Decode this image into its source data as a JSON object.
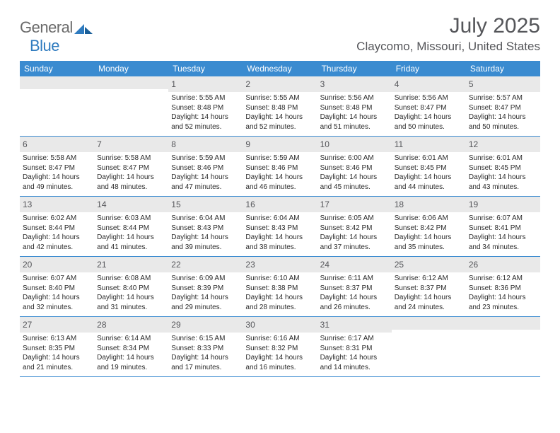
{
  "logo": {
    "part1": "General",
    "part2": "Blue"
  },
  "title": {
    "month": "July 2025",
    "location": "Claycomo, Missouri, United States"
  },
  "calendar": {
    "header_bg": "#3a8bd0",
    "daynum_bg": "#e9e9e9",
    "days": [
      "Sunday",
      "Monday",
      "Tuesday",
      "Wednesday",
      "Thursday",
      "Friday",
      "Saturday"
    ],
    "weeks": [
      [
        null,
        null,
        {
          "n": "1",
          "sunrise": "5:55 AM",
          "sunset": "8:48 PM",
          "daylight": "14 hours and 52 minutes."
        },
        {
          "n": "2",
          "sunrise": "5:55 AM",
          "sunset": "8:48 PM",
          "daylight": "14 hours and 52 minutes."
        },
        {
          "n": "3",
          "sunrise": "5:56 AM",
          "sunset": "8:48 PM",
          "daylight": "14 hours and 51 minutes."
        },
        {
          "n": "4",
          "sunrise": "5:56 AM",
          "sunset": "8:47 PM",
          "daylight": "14 hours and 50 minutes."
        },
        {
          "n": "5",
          "sunrise": "5:57 AM",
          "sunset": "8:47 PM",
          "daylight": "14 hours and 50 minutes."
        }
      ],
      [
        {
          "n": "6",
          "sunrise": "5:58 AM",
          "sunset": "8:47 PM",
          "daylight": "14 hours and 49 minutes."
        },
        {
          "n": "7",
          "sunrise": "5:58 AM",
          "sunset": "8:47 PM",
          "daylight": "14 hours and 48 minutes."
        },
        {
          "n": "8",
          "sunrise": "5:59 AM",
          "sunset": "8:46 PM",
          "daylight": "14 hours and 47 minutes."
        },
        {
          "n": "9",
          "sunrise": "5:59 AM",
          "sunset": "8:46 PM",
          "daylight": "14 hours and 46 minutes."
        },
        {
          "n": "10",
          "sunrise": "6:00 AM",
          "sunset": "8:46 PM",
          "daylight": "14 hours and 45 minutes."
        },
        {
          "n": "11",
          "sunrise": "6:01 AM",
          "sunset": "8:45 PM",
          "daylight": "14 hours and 44 minutes."
        },
        {
          "n": "12",
          "sunrise": "6:01 AM",
          "sunset": "8:45 PM",
          "daylight": "14 hours and 43 minutes."
        }
      ],
      [
        {
          "n": "13",
          "sunrise": "6:02 AM",
          "sunset": "8:44 PM",
          "daylight": "14 hours and 42 minutes."
        },
        {
          "n": "14",
          "sunrise": "6:03 AM",
          "sunset": "8:44 PM",
          "daylight": "14 hours and 41 minutes."
        },
        {
          "n": "15",
          "sunrise": "6:04 AM",
          "sunset": "8:43 PM",
          "daylight": "14 hours and 39 minutes."
        },
        {
          "n": "16",
          "sunrise": "6:04 AM",
          "sunset": "8:43 PM",
          "daylight": "14 hours and 38 minutes."
        },
        {
          "n": "17",
          "sunrise": "6:05 AM",
          "sunset": "8:42 PM",
          "daylight": "14 hours and 37 minutes."
        },
        {
          "n": "18",
          "sunrise": "6:06 AM",
          "sunset": "8:42 PM",
          "daylight": "14 hours and 35 minutes."
        },
        {
          "n": "19",
          "sunrise": "6:07 AM",
          "sunset": "8:41 PM",
          "daylight": "14 hours and 34 minutes."
        }
      ],
      [
        {
          "n": "20",
          "sunrise": "6:07 AM",
          "sunset": "8:40 PM",
          "daylight": "14 hours and 32 minutes."
        },
        {
          "n": "21",
          "sunrise": "6:08 AM",
          "sunset": "8:40 PM",
          "daylight": "14 hours and 31 minutes."
        },
        {
          "n": "22",
          "sunrise": "6:09 AM",
          "sunset": "8:39 PM",
          "daylight": "14 hours and 29 minutes."
        },
        {
          "n": "23",
          "sunrise": "6:10 AM",
          "sunset": "8:38 PM",
          "daylight": "14 hours and 28 minutes."
        },
        {
          "n": "24",
          "sunrise": "6:11 AM",
          "sunset": "8:37 PM",
          "daylight": "14 hours and 26 minutes."
        },
        {
          "n": "25",
          "sunrise": "6:12 AM",
          "sunset": "8:37 PM",
          "daylight": "14 hours and 24 minutes."
        },
        {
          "n": "26",
          "sunrise": "6:12 AM",
          "sunset": "8:36 PM",
          "daylight": "14 hours and 23 minutes."
        }
      ],
      [
        {
          "n": "27",
          "sunrise": "6:13 AM",
          "sunset": "8:35 PM",
          "daylight": "14 hours and 21 minutes."
        },
        {
          "n": "28",
          "sunrise": "6:14 AM",
          "sunset": "8:34 PM",
          "daylight": "14 hours and 19 minutes."
        },
        {
          "n": "29",
          "sunrise": "6:15 AM",
          "sunset": "8:33 PM",
          "daylight": "14 hours and 17 minutes."
        },
        {
          "n": "30",
          "sunrise": "6:16 AM",
          "sunset": "8:32 PM",
          "daylight": "14 hours and 16 minutes."
        },
        {
          "n": "31",
          "sunrise": "6:17 AM",
          "sunset": "8:31 PM",
          "daylight": "14 hours and 14 minutes."
        },
        null,
        null
      ]
    ]
  },
  "labels": {
    "sunrise": "Sunrise: ",
    "sunset": "Sunset: ",
    "daylight": "Daylight: "
  }
}
